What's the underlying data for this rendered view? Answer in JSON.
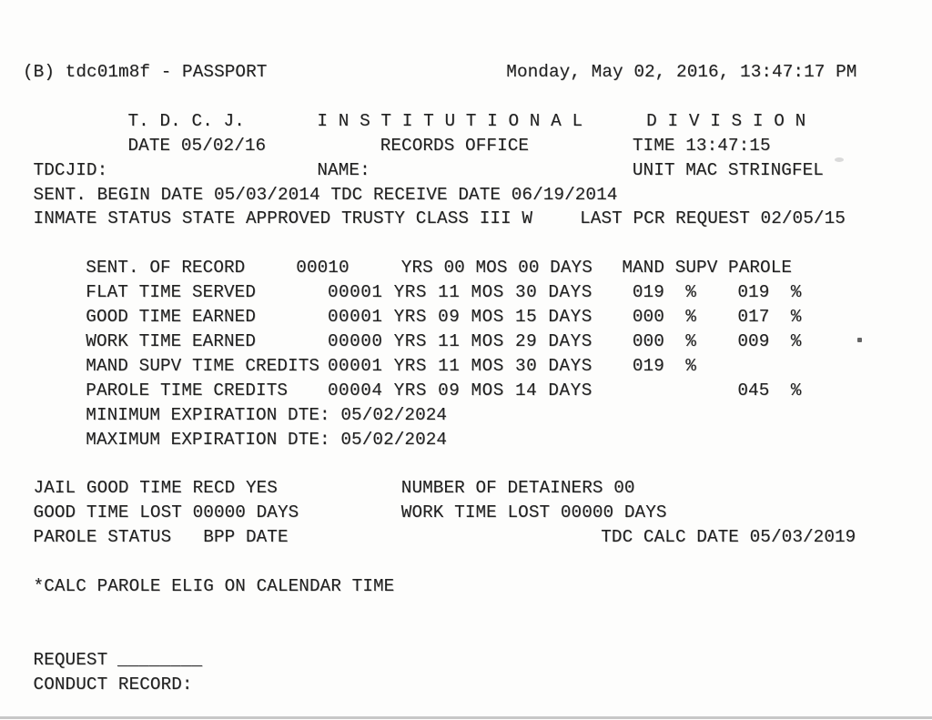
{
  "header": {
    "screen_id": "(B) tdc01m8f - PASSPORT",
    "datetime": "Monday, May 02, 2016, 13:47:17 PM"
  },
  "masthead": {
    "agency": "T. D. C. J.",
    "division": "I N S T I T U T I O N A L      D I V I S I O N",
    "date": "DATE 05/02/16",
    "office": "RECORDS OFFICE",
    "time": "TIME 13:47:15"
  },
  "identity": {
    "tdcjid_label": "TDCJID:",
    "name_label": "NAME:",
    "unit": "UNIT MAC STRINGFEL",
    "sentence_dates": "SENT. BEGIN DATE 05/03/2014 TDC RECEIVE DATE 06/19/2014",
    "inmate_status": "INMATE STATUS STATE APPROVED TRUSTY CLASS III W",
    "last_pcr": "LAST PCR REQUEST 02/05/15"
  },
  "sentence_table": {
    "header": {
      "label": "SENT. OF RECORD",
      "value": "00010",
      "duration": "YRS 00 MOS 00 DAYS",
      "columns": "MAND SUPV PAROLE"
    },
    "rows": [
      {
        "label": "FLAT TIME SERVED",
        "duration": "00001 YRS 11 MOS 30 DAYS",
        "mand": "019  %",
        "parole": "019  %"
      },
      {
        "label": "GOOD TIME EARNED",
        "duration": "00001 YRS 09 MOS 15 DAYS",
        "mand": "000  %",
        "parole": "017  %"
      },
      {
        "label": "WORK TIME EARNED",
        "duration": "00000 YRS 11 MOS 29 DAYS",
        "mand": "000  %",
        "parole": "009  %"
      },
      {
        "label": "MAND SUPV TIME CREDITS",
        "duration": "00001 YRS 11 MOS 30 DAYS",
        "mand": "019  %"
      },
      {
        "label": "PAROLE TIME CREDITS",
        "duration": "00004 YRS 09 MOS 14 DAYS",
        "parole": "045  %"
      }
    ],
    "min_expiration": "MINIMUM EXPIRATION DTE: 05/02/2024",
    "max_expiration": "MAXIMUM EXPIRATION DTE: 05/02/2024"
  },
  "summary": {
    "jail_good_time": "JAIL GOOD TIME RECD YES",
    "detainers": "NUMBER OF DETAINERS 00",
    "good_time_lost": "GOOD TIME LOST 00000 DAYS",
    "work_time_lost": "WORK TIME LOST 00000 DAYS",
    "parole_status": "PAROLE STATUS   BPP DATE",
    "tdc_calc": "TDC CALC DATE 05/03/2019"
  },
  "footer": {
    "calc_note": "*CALC PAROLE ELIG ON CALENDAR TIME",
    "request_label": "REQUEST",
    "request_blank": "________",
    "conduct_record": "CONDUCT RECORD:"
  }
}
